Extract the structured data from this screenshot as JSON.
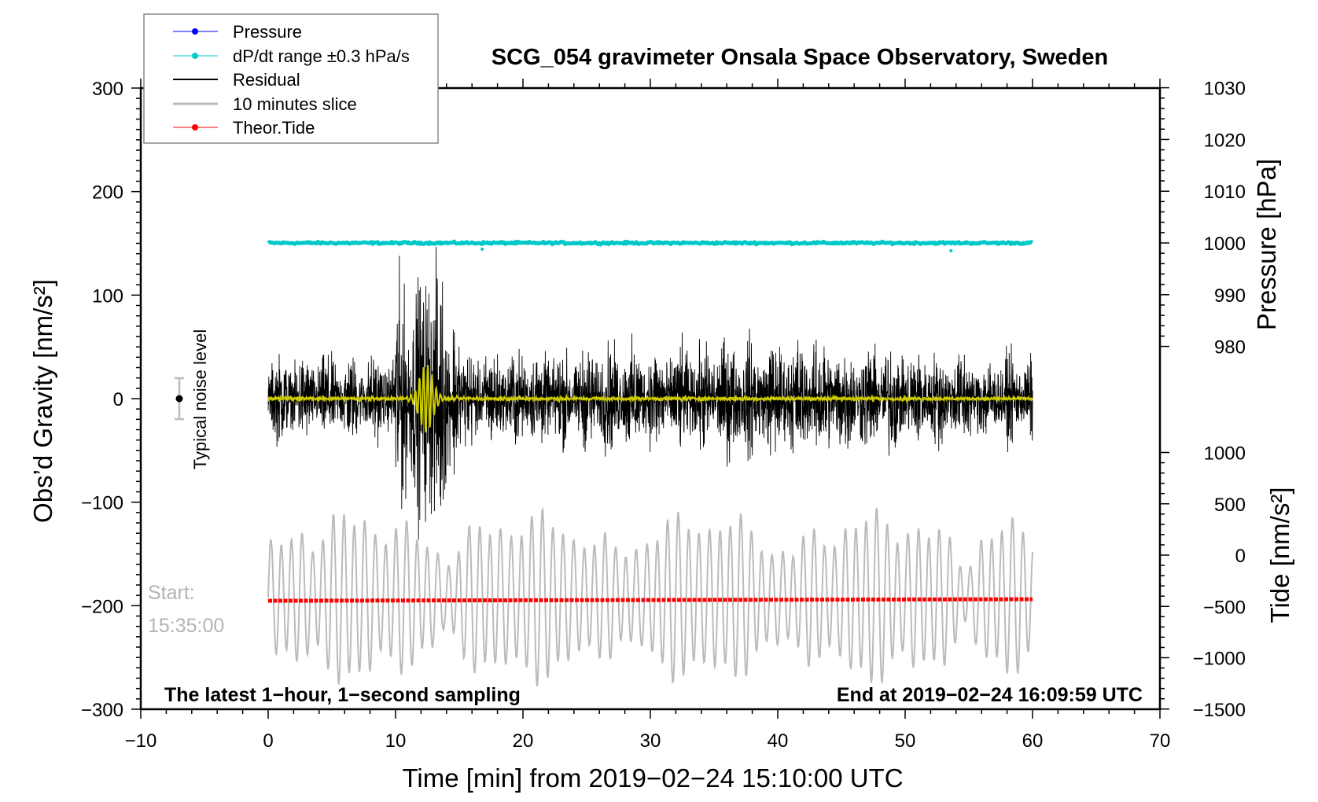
{
  "chart_data": {
    "type": "line",
    "title": "SCG_054 gravimeter Onsala Space Observatory, Sweden",
    "xlabel": "Time [min] from 2019−02−24 15:10:00 UTC",
    "ylabel_left": "Obs’d Gravity [nm/s²]",
    "ylabel_right_top": "Pressure [hPa]",
    "ylabel_right_bottom": "Tide [nm/s²]",
    "xlim": [
      -10,
      70
    ],
    "ylim_left": [
      -300,
      300
    ],
    "ylim_pressure": [
      970,
      1030
    ],
    "ylim_tide": [
      -1500,
      1000
    ],
    "x_ticks": [
      "−10",
      "0",
      "10",
      "20",
      "30",
      "40",
      "50",
      "60",
      "70"
    ],
    "x_tick_values": [
      -10,
      0,
      10,
      20,
      30,
      40,
      50,
      60,
      70
    ],
    "y_left_ticks": [
      "300",
      "200",
      "100",
      "0",
      "−100",
      "−200",
      "−300"
    ],
    "y_left_tick_values": [
      300,
      200,
      100,
      0,
      -100,
      -200,
      -300
    ],
    "pressure_ticks": [
      "1030",
      "1020",
      "1010",
      "1000",
      "990",
      "980"
    ],
    "pressure_tick_values": [
      1030,
      1020,
      1010,
      1000,
      990,
      980
    ],
    "tide_ticks": [
      "1000",
      "500",
      "0",
      "−500",
      "−1000",
      "−1500"
    ],
    "tide_tick_values": [
      1000,
      500,
      0,
      -500,
      -1000,
      -1500
    ],
    "legend": {
      "placement": "top-left",
      "entries": [
        {
          "label": "Pressure",
          "color": "#0000ff",
          "marker": true
        },
        {
          "label": "dP/dt range ±0.3 hPa/s",
          "color": "#00cccc",
          "marker": true
        },
        {
          "label": "Residual",
          "color": "#000000",
          "marker": false
        },
        {
          "label": "10 minutes slice",
          "color": "#bbbbbb",
          "marker": false
        },
        {
          "label": "Theor.Tide",
          "color": "#ff0000",
          "marker": true
        }
      ]
    },
    "series": [
      {
        "name": "dP/dt range ±0.3 hPa/s",
        "axis": "pressure",
        "x_range": [
          0,
          60
        ],
        "value": 1000,
        "color": "#00c8c8"
      },
      {
        "name": "Residual",
        "axis": "left",
        "x_range": [
          0,
          60
        ],
        "center": 0,
        "color": "#000000",
        "envelope_per_5min": [
          40,
          40,
          110,
          45,
          45,
          50,
          50,
          55,
          55,
          50,
          45,
          40
        ],
        "min": -145,
        "max": 122
      },
      {
        "name": "Residual (filtered)",
        "axis": "left",
        "x_range": [
          0,
          60
        ],
        "center": 0,
        "color": "#cccc00",
        "burst": {
          "start": 10.8,
          "end": 14.2,
          "amplitude": 33
        }
      },
      {
        "name": "10 minutes slice",
        "axis": "left",
        "x_range": [
          0,
          60
        ],
        "center": -192,
        "color": "#bbbbbb",
        "amplitude_range": [
          20,
          85
        ]
      },
      {
        "name": "Theor.Tide",
        "axis": "tide",
        "x": [
          0,
          60
        ],
        "values": [
          -445,
          -430
        ],
        "color": "#ff0000"
      }
    ],
    "noise_level": {
      "x": -7,
      "y": 0,
      "error": 20,
      "label": "Typical noise level"
    },
    "annotations": {
      "start_label": "Start:",
      "start_time": "15:35:00",
      "bottom_left": "The latest 1−hour, 1−second sampling",
      "bottom_right": "End at 2019−02−24 16:09:59 UTC"
    }
  }
}
